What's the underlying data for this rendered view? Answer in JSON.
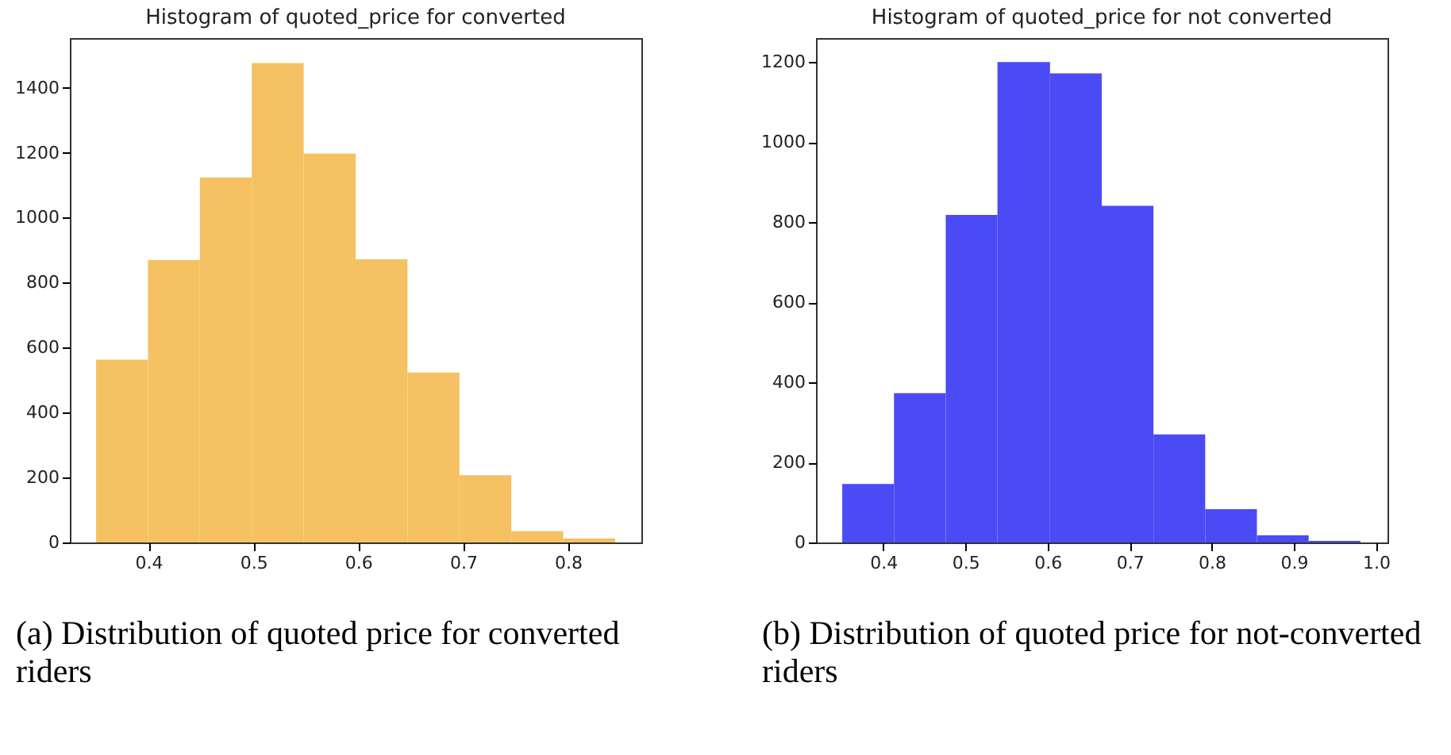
{
  "chart_data": [
    {
      "type": "histogram",
      "title": "Histogram of quoted_price for converted",
      "color": "#f5c163",
      "bins": [
        0.35,
        0.3995,
        0.449,
        0.4985,
        0.548,
        0.5975,
        0.647,
        0.6965,
        0.746,
        0.7955,
        0.845
      ],
      "values": [
        563,
        869,
        1124,
        1476,
        1197,
        872,
        523,
        207,
        35,
        12
      ],
      "xlim": [
        0.325,
        0.87
      ],
      "ylim": [
        0,
        1553
      ],
      "xticks": [
        0.4,
        0.5,
        0.6,
        0.7,
        0.8
      ],
      "yticks": [
        0,
        200,
        400,
        600,
        800,
        1000,
        1200,
        1400
      ],
      "annotations": [
        "(a) Distribution of quoted price for converted riders"
      ]
    },
    {
      "type": "histogram",
      "title": "Histogram of quoted_price for not converted",
      "color": "#4b4bf5",
      "bins": [
        0.35,
        0.413,
        0.476,
        0.539,
        0.603,
        0.666,
        0.729,
        0.792,
        0.855,
        0.918,
        0.981
      ],
      "values": [
        146,
        373,
        818,
        1200,
        1172,
        841,
        270,
        83,
        18,
        4
      ],
      "xlim": [
        0.318,
        1.014
      ],
      "ylim": [
        0,
        1260
      ],
      "xticks": [
        0.4,
        0.5,
        0.6,
        0.7,
        0.8,
        0.9,
        {
          "value": 1.0,
          "label": "1.0"
        }
      ],
      "yticks": [
        0,
        200,
        400,
        600,
        800,
        1000,
        1200
      ],
      "annotations": [
        "(b) Distribution of quoted price for not-converted riders"
      ]
    }
  ]
}
